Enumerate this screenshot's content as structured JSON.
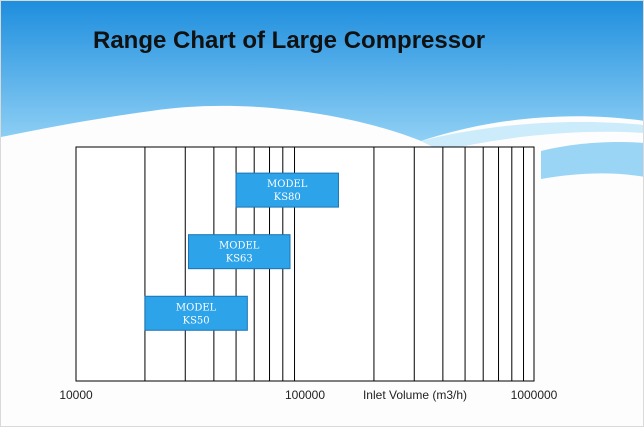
{
  "slide": {
    "title": "Range Chart of Large Compressor"
  },
  "colors": {
    "header_top": "#1e8ede",
    "header_bottom": "#7fc8f3",
    "model_box": "#2da3ea",
    "model_box_border": "#1b74b4",
    "grid_line": "#000000"
  },
  "chart_data": {
    "type": "range",
    "title": "Range Chart of Large Compressor",
    "xlabel": "Inlet Volume (m3/h)",
    "ylabel": "",
    "x_scale": "log",
    "xlim": [
      10000,
      1000000
    ],
    "grid": true,
    "x_tick_labels": [
      "10000",
      "100000",
      "1000000"
    ],
    "series": [
      {
        "name": "MODEL KS80",
        "line1": "MODEL",
        "line2": "KS80",
        "min": 50000,
        "max": 140000
      },
      {
        "name": "MODEL KS63",
        "line1": "MODEL",
        "line2": "KS63",
        "min": 31000,
        "max": 86000
      },
      {
        "name": "MODEL KS50",
        "line1": "MODEL",
        "line2": "KS50",
        "min": 20000,
        "max": 56000
      }
    ]
  }
}
